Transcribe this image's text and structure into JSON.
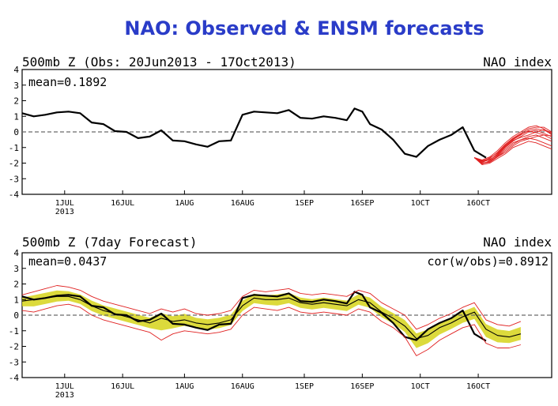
{
  "title": "NAO: Observed & ENSM forecasts",
  "colors": {
    "title": "#2a3cc8",
    "obs": "#000000",
    "forecast_member": "#e02020",
    "spread_fill": "#d6d41a",
    "zero_line": "#6a6a6a"
  },
  "x_ticks": [
    {
      "day": 11,
      "label": "1JUL",
      "sub": "2013"
    },
    {
      "day": 26,
      "label": "16JUL",
      "sub": ""
    },
    {
      "day": 42,
      "label": "1AUG",
      "sub": ""
    },
    {
      "day": 57,
      "label": "16AUG",
      "sub": ""
    },
    {
      "day": 73,
      "label": "1SEP",
      "sub": ""
    },
    {
      "day": 88,
      "label": "16SEP",
      "sub": ""
    },
    {
      "day": 103,
      "label": "1OCT",
      "sub": ""
    },
    {
      "day": 118,
      "label": "16OCT",
      "sub": ""
    }
  ],
  "chart_data": [
    {
      "type": "line",
      "title": "500mb Z (Obs: 20Jun2013 - 17Oct2013)",
      "right_label": "NAO index",
      "annotation_left": "mean=0.1892",
      "annotation_right": "",
      "xlabel": "",
      "ylabel": "",
      "ylim": [
        -4,
        4
      ],
      "yticks": [
        4,
        3,
        2,
        1,
        0,
        -1,
        -2,
        -3,
        -4
      ],
      "xlim": [
        0,
        137
      ],
      "series": [
        {
          "name": "observed",
          "kind": "obs",
          "x": [
            0,
            3,
            6,
            9,
            12,
            15,
            18,
            21,
            24,
            27,
            30,
            33,
            36,
            39,
            42,
            45,
            48,
            51,
            54,
            57,
            60,
            63,
            66,
            69,
            72,
            75,
            78,
            81,
            84,
            86,
            88,
            90,
            93,
            96,
            99,
            102,
            105,
            108,
            111,
            114,
            117,
            120
          ],
          "y": [
            1.2,
            1.0,
            1.1,
            1.25,
            1.3,
            1.2,
            0.6,
            0.5,
            0.05,
            0.0,
            -0.4,
            -0.3,
            0.1,
            -0.55,
            -0.6,
            -0.8,
            -0.95,
            -0.6,
            -0.55,
            1.1,
            1.3,
            1.25,
            1.2,
            1.4,
            0.9,
            0.85,
            1.0,
            0.9,
            0.75,
            1.5,
            1.3,
            0.5,
            0.15,
            -0.5,
            -1.4,
            -1.6,
            -0.9,
            -0.5,
            -0.2,
            0.3,
            -1.2,
            -1.65
          ]
        }
      ],
      "ensemble": {
        "start_day": 117,
        "end_day": 137,
        "start_value": -1.65,
        "members": [
          [
            -1.65,
            -1.9,
            -1.8,
            -1.4,
            -0.9,
            -0.5,
            -0.2,
            0.1,
            0.2,
            0.1,
            -0.1
          ],
          [
            -1.65,
            -2.0,
            -1.9,
            -1.6,
            -1.2,
            -0.8,
            -0.5,
            -0.3,
            -0.2,
            -0.4,
            -0.6
          ],
          [
            -1.65,
            -1.85,
            -1.7,
            -1.3,
            -0.8,
            -0.4,
            -0.1,
            0.2,
            0.3,
            0.3,
            0.0
          ],
          [
            -1.65,
            -2.1,
            -2.0,
            -1.7,
            -1.4,
            -1.0,
            -0.8,
            -0.6,
            -0.7,
            -0.9,
            -1.1
          ],
          [
            -1.65,
            -1.95,
            -1.75,
            -1.5,
            -1.0,
            -0.6,
            -0.3,
            0.0,
            0.1,
            -0.1,
            -0.3
          ],
          [
            -1.65,
            -1.8,
            -1.6,
            -1.2,
            -0.7,
            -0.3,
            0.0,
            0.3,
            0.4,
            0.2,
            -0.2
          ],
          [
            -1.65,
            -2.05,
            -1.85,
            -1.55,
            -1.1,
            -0.7,
            -0.5,
            -0.4,
            -0.5,
            -0.7,
            -0.9
          ],
          [
            -1.65,
            -1.9,
            -1.65,
            -1.35,
            -0.85,
            -0.45,
            -0.15,
            0.05,
            -0.05,
            -0.2,
            -0.45
          ],
          [
            -1.65,
            -2.0,
            -1.95,
            -1.6,
            -1.3,
            -0.9,
            -0.6,
            -0.45,
            -0.3,
            -0.2,
            -0.25
          ],
          [
            -1.65,
            -1.85,
            -1.8,
            -1.45,
            -0.95,
            -0.55,
            -0.35,
            -0.2,
            0.0,
            0.15,
            -0.05
          ]
        ]
      }
    },
    {
      "type": "line",
      "title": "500mb Z (7day Forecast)",
      "right_label": "NAO index",
      "annotation_left": "mean=0.0437",
      "annotation_right": "cor(w/obs)=0.8912",
      "xlabel": "",
      "ylabel": "",
      "ylim": [
        -4,
        4
      ],
      "yticks": [
        4,
        3,
        2,
        1,
        0,
        -1,
        -2,
        -3,
        -4
      ],
      "xlim": [
        0,
        137
      ],
      "series": [
        {
          "name": "observed",
          "kind": "obs",
          "x": [
            0,
            3,
            6,
            9,
            12,
            15,
            18,
            21,
            24,
            27,
            30,
            33,
            36,
            39,
            42,
            45,
            48,
            51,
            54,
            57,
            60,
            63,
            66,
            69,
            72,
            75,
            78,
            81,
            84,
            86,
            88,
            90,
            93,
            96,
            99,
            102,
            105,
            108,
            111,
            114,
            117,
            120
          ],
          "y": [
            1.2,
            1.0,
            1.1,
            1.25,
            1.3,
            1.2,
            0.6,
            0.5,
            0.05,
            0.0,
            -0.4,
            -0.3,
            0.1,
            -0.55,
            -0.6,
            -0.8,
            -0.95,
            -0.6,
            -0.55,
            1.1,
            1.3,
            1.25,
            1.2,
            1.4,
            0.9,
            0.85,
            1.0,
            0.9,
            0.75,
            1.5,
            1.3,
            0.5,
            0.15,
            -0.5,
            -1.4,
            -1.6,
            -0.9,
            -0.5,
            -0.2,
            0.3,
            -1.2,
            -1.65
          ]
        },
        {
          "name": "forecast mean",
          "kind": "mean",
          "x": [
            0,
            3,
            6,
            9,
            12,
            15,
            18,
            21,
            24,
            27,
            30,
            33,
            36,
            39,
            42,
            45,
            48,
            51,
            54,
            57,
            60,
            63,
            66,
            69,
            72,
            75,
            78,
            81,
            84,
            87,
            90,
            93,
            96,
            99,
            102,
            105,
            108,
            111,
            114,
            117,
            120,
            123,
            126,
            129
          ],
          "y": [
            0.9,
            1.0,
            1.1,
            1.2,
            1.2,
            1.0,
            0.6,
            0.3,
            0.1,
            -0.1,
            -0.3,
            -0.5,
            -0.2,
            -0.4,
            -0.3,
            -0.5,
            -0.6,
            -0.5,
            -0.3,
            0.6,
            1.1,
            1.0,
            1.0,
            1.1,
            0.8,
            0.7,
            0.8,
            0.7,
            0.6,
            1.0,
            0.8,
            0.2,
            -0.2,
            -0.7,
            -1.5,
            -1.3,
            -0.8,
            -0.5,
            -0.1,
            0.2,
            -0.9,
            -1.3,
            -1.4,
            -1.2
          ]
        },
        {
          "name": "min member",
          "kind": "spread",
          "x": [
            0,
            3,
            6,
            9,
            12,
            15,
            18,
            21,
            24,
            27,
            30,
            33,
            36,
            39,
            42,
            45,
            48,
            51,
            54,
            57,
            60,
            63,
            66,
            69,
            72,
            75,
            78,
            81,
            84,
            87,
            90,
            93,
            96,
            99,
            102,
            105,
            108,
            111,
            114,
            117,
            120,
            123,
            126,
            129
          ],
          "y": [
            0.3,
            0.2,
            0.4,
            0.6,
            0.7,
            0.5,
            0.0,
            -0.3,
            -0.5,
            -0.7,
            -0.9,
            -1.1,
            -1.6,
            -1.2,
            -1.0,
            -1.1,
            -1.2,
            -1.1,
            -0.9,
            0.0,
            0.5,
            0.4,
            0.3,
            0.5,
            0.2,
            0.1,
            0.2,
            0.1,
            0.0,
            0.4,
            0.2,
            -0.4,
            -0.8,
            -1.4,
            -2.6,
            -2.2,
            -1.6,
            -1.2,
            -0.8,
            -0.6,
            -1.8,
            -2.1,
            -2.1,
            -1.9
          ]
        },
        {
          "name": "max member",
          "kind": "spread",
          "x": [
            0,
            3,
            6,
            9,
            12,
            15,
            18,
            21,
            24,
            27,
            30,
            33,
            36,
            39,
            42,
            45,
            48,
            51,
            54,
            57,
            60,
            63,
            66,
            69,
            72,
            75,
            78,
            81,
            84,
            87,
            90,
            93,
            96,
            99,
            102,
            105,
            108,
            111,
            114,
            117,
            120,
            123,
            126,
            129
          ],
          "y": [
            1.3,
            1.5,
            1.7,
            1.9,
            1.8,
            1.6,
            1.2,
            0.9,
            0.7,
            0.5,
            0.3,
            0.1,
            0.4,
            0.2,
            0.4,
            0.1,
            0.0,
            0.1,
            0.3,
            1.2,
            1.6,
            1.5,
            1.6,
            1.7,
            1.4,
            1.3,
            1.4,
            1.3,
            1.2,
            1.6,
            1.4,
            0.8,
            0.4,
            0.0,
            -0.9,
            -0.6,
            -0.2,
            0.1,
            0.5,
            0.8,
            -0.3,
            -0.6,
            -0.7,
            -0.4
          ]
        }
      ]
    }
  ]
}
